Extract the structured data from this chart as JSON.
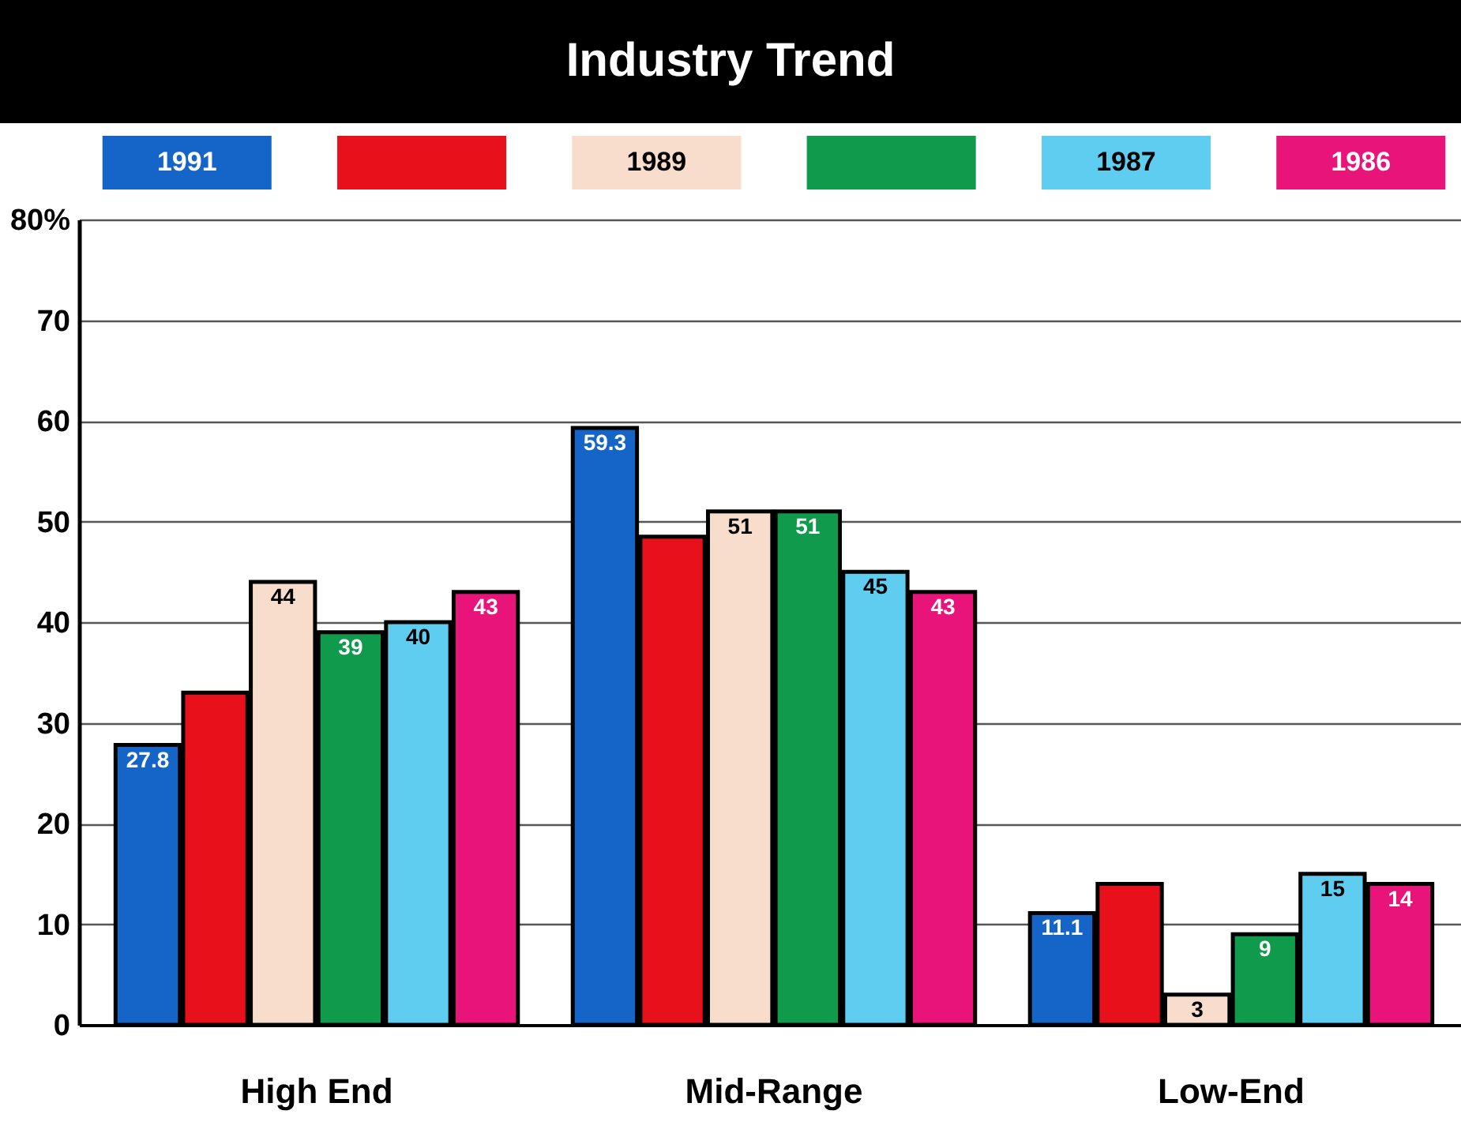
{
  "chart_data": {
    "type": "bar",
    "title": "Industry Trend",
    "categories": [
      "High End",
      "Mid-Range",
      "Low-End"
    ],
    "series": [
      {
        "name": "1991",
        "color": "#1565c8",
        "values": [
          27.8,
          59.3,
          11.1
        ],
        "value_labels": [
          "27.8",
          "59.3",
          "11.1"
        ]
      },
      {
        "color": "#e8101a",
        "values": [
          33,
          48.5,
          14
        ],
        "value_labels": [
          null,
          null,
          null
        ]
      },
      {
        "name": "1989",
        "color": "#f8dccc",
        "values": [
          44,
          51,
          3
        ],
        "value_labels": [
          "44",
          "51",
          "3"
        ]
      },
      {
        "color": "#0f9a4c",
        "values": [
          39,
          51,
          9
        ],
        "value_labels": [
          "39",
          "51",
          "9"
        ]
      },
      {
        "name": "1987",
        "color": "#5fcdf0",
        "values": [
          40,
          45,
          15
        ],
        "value_labels": [
          "40",
          "45",
          "15"
        ]
      },
      {
        "name": "1986",
        "color": "#e8147a",
        "values": [
          43,
          43,
          14
        ],
        "value_labels": [
          "43",
          "43",
          "14"
        ]
      }
    ],
    "ylim": [
      0,
      80
    ],
    "yticks": [
      0,
      10,
      20,
      30,
      40,
      50,
      60,
      70,
      {
        "value": 80,
        "label": "80%"
      }
    ],
    "grid": "y",
    "legend": "top"
  }
}
